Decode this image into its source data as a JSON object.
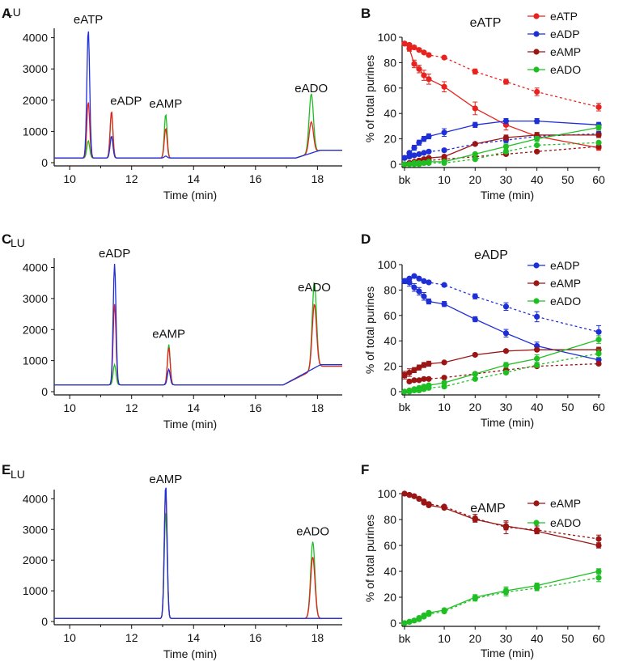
{
  "figure": {
    "panel_letters": [
      "A",
      "B",
      "C",
      "D",
      "E",
      "F"
    ]
  },
  "colors": {
    "eATP": "#e8231f",
    "eADP": "#1f2fd6",
    "eAMP": "#9b1515",
    "eADO": "#1fbf24",
    "axis": "#111111"
  },
  "chart_data": [
    {
      "panel": "A",
      "type": "line",
      "title": "",
      "ylabel_top": "LU",
      "xlabel": "Time (min)",
      "xlim": [
        9.5,
        18.8
      ],
      "ylim": [
        0,
        4300
      ],
      "xticks": [
        "10",
        "12",
        "14",
        "16",
        "18"
      ],
      "yticks": [
        "0",
        "1000",
        "2000",
        "3000",
        "4000"
      ],
      "peaks": [
        {
          "label": "eATP",
          "time": 10.6,
          "heights": {
            "blue": 4100,
            "red": 1800,
            "green": 550
          }
        },
        {
          "label": "eADP",
          "time": 11.35,
          "heights": {
            "blue": 700,
            "red": 1500,
            "green": 1450
          }
        },
        {
          "label": "eAMP",
          "time": 13.1,
          "heights": {
            "blue": 60,
            "red": 950,
            "green": 1400
          }
        },
        {
          "label": "eADO",
          "time": 17.8,
          "heights": {
            "blue": 0,
            "red": 1000,
            "green": 1900
          }
        }
      ],
      "baseline": 150
    },
    {
      "panel": "B",
      "type": "line",
      "title": "eATP",
      "xlabel": "Time (min)",
      "ylabel": "% of total  purines",
      "ylim": [
        0,
        100
      ],
      "xticks": [
        "bk",
        "10",
        "20",
        "30",
        "40",
        "50",
        "60"
      ],
      "yticks": [
        "0",
        "20",
        "40",
        "60",
        "80",
        "100"
      ],
      "legend": [
        "eATP",
        "eADP",
        "eAMP",
        "eADO"
      ],
      "series": [
        {
          "name": "eATP",
          "style": "solid",
          "x": [
            0,
            1,
            2,
            3,
            4,
            5,
            10,
            20,
            30,
            40,
            60
          ],
          "y": [
            95,
            91,
            79,
            75,
            70,
            67,
            61,
            44,
            31,
            22,
            13
          ],
          "err": [
            1,
            2,
            3,
            3,
            4,
            4,
            4,
            5,
            4,
            3,
            2
          ]
        },
        {
          "name": "eATP",
          "style": "dashed",
          "x": [
            0,
            1,
            2,
            3,
            4,
            5,
            10,
            20,
            30,
            40,
            60
          ],
          "y": [
            95,
            94,
            92,
            90,
            88,
            86,
            84,
            73,
            65,
            57,
            45
          ],
          "err": [
            1,
            1,
            1,
            1,
            1,
            1,
            1,
            2,
            2,
            3,
            3
          ]
        },
        {
          "name": "eADP",
          "style": "solid",
          "x": [
            0,
            1,
            2,
            3,
            4,
            5,
            10,
            20,
            30,
            40,
            60
          ],
          "y": [
            5,
            9,
            13,
            17,
            20,
            22,
            25,
            31,
            34,
            34,
            31
          ],
          "err": [
            1,
            1,
            2,
            2,
            2,
            2,
            3,
            2,
            2,
            2,
            2
          ]
        },
        {
          "name": "eADP",
          "style": "dashed",
          "x": [
            0,
            1,
            2,
            3,
            4,
            5,
            10,
            20,
            30,
            40,
            60
          ],
          "y": [
            5,
            6,
            7,
            8,
            9,
            10,
            11,
            16,
            19,
            22,
            24
          ],
          "err": [
            1,
            1,
            1,
            1,
            1,
            1,
            1,
            1,
            2,
            2,
            2
          ]
        },
        {
          "name": "eAMP",
          "style": "solid",
          "x": [
            0,
            1,
            2,
            3,
            4,
            5,
            10,
            20,
            30,
            40,
            60
          ],
          "y": [
            0,
            1,
            2,
            3,
            4,
            5,
            6,
            16,
            21,
            23,
            23
          ],
          "err": [
            0,
            0,
            1,
            1,
            1,
            1,
            1,
            1,
            2,
            2,
            2
          ]
        },
        {
          "name": "eAMP",
          "style": "dashed",
          "x": [
            0,
            1,
            2,
            3,
            4,
            5,
            10,
            20,
            30,
            40,
            60
          ],
          "y": [
            0,
            1,
            1,
            2,
            2,
            3,
            4,
            6,
            8,
            10,
            14
          ],
          "err": [
            0,
            0,
            0,
            0,
            0,
            0,
            1,
            1,
            1,
            1,
            1
          ]
        },
        {
          "name": "eADO",
          "style": "solid",
          "x": [
            0,
            1,
            2,
            3,
            4,
            5,
            10,
            20,
            30,
            40,
            60
          ],
          "y": [
            0,
            0,
            1,
            1,
            1,
            2,
            2,
            8,
            14,
            20,
            29
          ],
          "err": [
            0,
            0,
            0,
            0,
            0,
            0,
            1,
            1,
            2,
            2,
            2
          ]
        },
        {
          "name": "eADO",
          "style": "dashed",
          "x": [
            0,
            1,
            2,
            3,
            4,
            5,
            10,
            20,
            30,
            40,
            60
          ],
          "y": [
            0,
            0,
            0,
            0,
            1,
            1,
            1,
            4,
            10,
            15,
            17
          ],
          "err": [
            0,
            0,
            0,
            0,
            0,
            0,
            0,
            1,
            1,
            1,
            1
          ]
        }
      ]
    },
    {
      "panel": "C",
      "type": "line",
      "title": "",
      "ylabel_top": "LU",
      "xlabel": "Time (min)",
      "xlim": [
        9.5,
        18.8
      ],
      "ylim": [
        0,
        4300
      ],
      "xticks": [
        "10",
        "12",
        "14",
        "16",
        "18"
      ],
      "yticks": [
        "0",
        "1000",
        "2000",
        "3000",
        "4000"
      ],
      "peaks": [
        {
          "label": "eADP",
          "time": 11.45,
          "heights": {
            "blue": 3900,
            "red": 2600,
            "green": 650
          }
        },
        {
          "label": "eAMP",
          "time": 13.2,
          "heights": {
            "blue": 500,
            "red": 1200,
            "green": 1300
          }
        },
        {
          "label": "eADO",
          "time": 17.9,
          "heights": {
            "blue": 0,
            "red": 2100,
            "green": 2800
          }
        }
      ],
      "baseline": 220
    },
    {
      "panel": "D",
      "type": "line",
      "title": "eADP",
      "xlabel": "Time (min)",
      "ylabel": "% of total  purines",
      "ylim": [
        0,
        100
      ],
      "xticks": [
        "bk",
        "10",
        "20",
        "30",
        "40",
        "50",
        "60"
      ],
      "yticks": [
        "0",
        "20",
        "40",
        "60",
        "80",
        "100"
      ],
      "legend": [
        "eADP",
        "eAMP",
        "eADO"
      ],
      "series": [
        {
          "name": "eADP",
          "style": "solid",
          "x": [
            0,
            1,
            2,
            3,
            4,
            5,
            10,
            20,
            30,
            40,
            60
          ],
          "y": [
            87,
            86,
            82,
            79,
            75,
            71,
            69,
            57,
            46,
            36,
            25
          ],
          "err": [
            2,
            3,
            3,
            3,
            3,
            2,
            2,
            2,
            3,
            3,
            2
          ]
        },
        {
          "name": "eADP",
          "style": "dashed",
          "x": [
            0,
            1,
            2,
            3,
            4,
            5,
            10,
            20,
            30,
            40,
            60
          ],
          "y": [
            87,
            89,
            91,
            89,
            87,
            86,
            84,
            75,
            67,
            59,
            47
          ],
          "err": [
            1,
            1,
            1,
            1,
            1,
            1,
            1,
            2,
            3,
            4,
            5
          ]
        },
        {
          "name": "eAMP",
          "style": "solid",
          "x": [
            0,
            1,
            2,
            3,
            4,
            5,
            10,
            20,
            30,
            40,
            60
          ],
          "y": [
            13,
            15,
            17,
            19,
            21,
            22,
            23,
            29,
            32,
            33,
            33
          ],
          "err": [
            3,
            3,
            2,
            2,
            2,
            2,
            1,
            1,
            1,
            1,
            2
          ]
        },
        {
          "name": "eAMP",
          "style": "dashed",
          "x": [
            0,
            1,
            2,
            3,
            4,
            5,
            10,
            20,
            30,
            40,
            60
          ],
          "y": [
            13,
            8,
            9,
            9,
            10,
            10,
            11,
            14,
            17,
            20,
            22
          ],
          "err": [
            2,
            1,
            1,
            1,
            1,
            1,
            1,
            1,
            1,
            1,
            1
          ]
        },
        {
          "name": "eADO",
          "style": "solid",
          "x": [
            0,
            1,
            2,
            3,
            4,
            5,
            10,
            20,
            30,
            40,
            60
          ],
          "y": [
            0,
            1,
            2,
            3,
            4,
            5,
            7,
            14,
            21,
            26,
            41
          ],
          "err": [
            0,
            0,
            0,
            0,
            0,
            1,
            1,
            1,
            2,
            3,
            3
          ]
        },
        {
          "name": "eADO",
          "style": "dashed",
          "x": [
            0,
            1,
            2,
            3,
            4,
            5,
            10,
            20,
            30,
            40,
            60
          ],
          "y": [
            0,
            0,
            1,
            1,
            2,
            3,
            4,
            10,
            15,
            21,
            30
          ],
          "err": [
            0,
            0,
            0,
            0,
            0,
            0,
            1,
            1,
            1,
            2,
            3
          ]
        }
      ]
    },
    {
      "panel": "E",
      "type": "line",
      "title": "",
      "ylabel_top": "LU",
      "xlabel": "Time (min)",
      "xlim": [
        9.5,
        18.8
      ],
      "ylim": [
        0,
        4300
      ],
      "xticks": [
        "10",
        "12",
        "14",
        "16",
        "18"
      ],
      "yticks": [
        "0",
        "1000",
        "2000",
        "3000",
        "4000"
      ],
      "peaks": [
        {
          "label": "eAMP",
          "time": 13.1,
          "heights": {
            "blue": 4350,
            "red": 4200,
            "green": 3500
          }
        },
        {
          "label": "eADO",
          "time": 17.85,
          "heights": {
            "blue": 0,
            "red": 2000,
            "green": 2500
          }
        }
      ],
      "baseline": 100
    },
    {
      "panel": "F",
      "type": "line",
      "title": "eAMP",
      "xlabel": "Time (min)",
      "ylabel": "% of total  purines",
      "ylim": [
        0,
        100
      ],
      "xticks": [
        "bk",
        "10",
        "20",
        "30",
        "40",
        "50",
        "60"
      ],
      "yticks": [
        "0",
        "20",
        "40",
        "60",
        "80",
        "100"
      ],
      "legend": [
        "eAMP",
        "eADO"
      ],
      "series": [
        {
          "name": "eAMP",
          "style": "solid",
          "x": [
            0,
            1,
            2,
            3,
            4,
            5,
            10,
            20,
            30,
            40,
            60
          ],
          "y": [
            100,
            99,
            98,
            96,
            93,
            91,
            89,
            80,
            75,
            71,
            60
          ],
          "err": [
            0,
            0,
            0,
            1,
            1,
            1,
            1,
            2,
            3,
            2,
            2
          ]
        },
        {
          "name": "eAMP",
          "style": "dashed",
          "x": [
            0,
            1,
            2,
            3,
            4,
            5,
            10,
            20,
            30,
            40,
            60
          ],
          "y": [
            100,
            99,
            98,
            96,
            94,
            92,
            90,
            81,
            74,
            72,
            65
          ],
          "err": [
            0,
            0,
            0,
            1,
            1,
            1,
            1,
            3,
            5,
            3,
            3
          ]
        },
        {
          "name": "eADO",
          "style": "solid",
          "x": [
            0,
            1,
            2,
            3,
            4,
            5,
            10,
            20,
            30,
            40,
            60
          ],
          "y": [
            0,
            1,
            2,
            4,
            6,
            8,
            10,
            20,
            25,
            29,
            40
          ],
          "err": [
            0,
            0,
            0,
            1,
            1,
            1,
            1,
            2,
            3,
            2,
            2
          ]
        },
        {
          "name": "eADO",
          "style": "dashed",
          "x": [
            0,
            1,
            2,
            3,
            4,
            5,
            10,
            20,
            30,
            40,
            60
          ],
          "y": [
            0,
            1,
            2,
            3,
            5,
            7,
            9,
            19,
            24,
            27,
            35
          ],
          "err": [
            0,
            0,
            0,
            1,
            1,
            1,
            1,
            2,
            3,
            2,
            3
          ]
        }
      ]
    }
  ]
}
